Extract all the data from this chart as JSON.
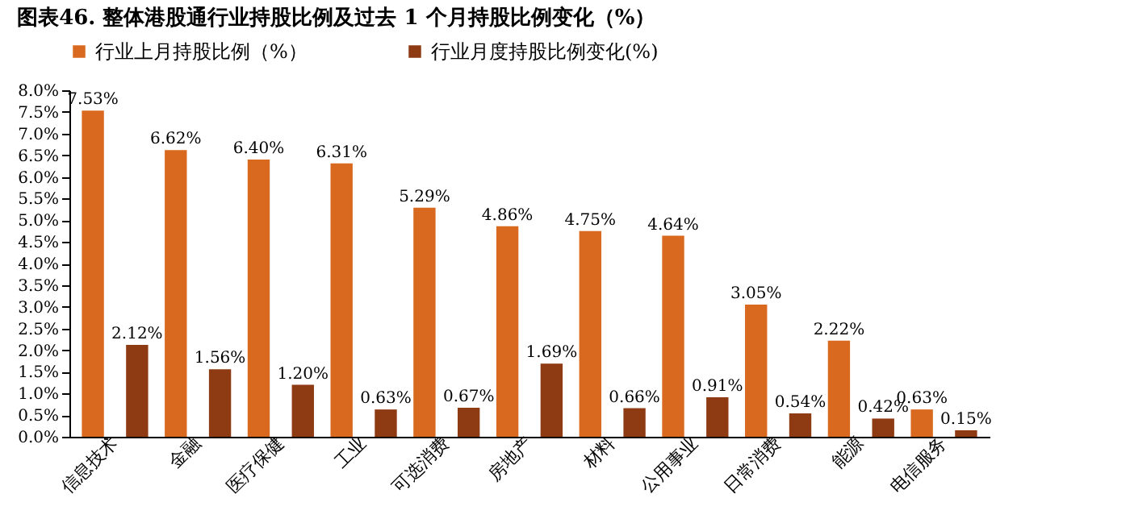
{
  "chart_data": {
    "type": "bar",
    "title": "图表46.  整体港股通行业持股比例及过去 1 个月持股比例变化（%）",
    "categories": [
      "信息技术",
      "金融",
      "医疗保健",
      "工业",
      "可选消费",
      "房地产",
      "材料",
      "公用事业",
      "日常消费",
      "能源",
      "电信服务"
    ],
    "series": [
      {
        "name": "行业上月持股比例（%）",
        "color": "#d8691f",
        "values": [
          7.53,
          6.62,
          6.4,
          6.31,
          5.29,
          4.86,
          4.75,
          4.64,
          3.05,
          2.22,
          0.63
        ],
        "value_labels": [
          "7.53%",
          "6.62%",
          "6.40%",
          "6.31%",
          "5.29%",
          "4.86%",
          "4.75%",
          "4.64%",
          "3.05%",
          "2.22%",
          "0.63%"
        ]
      },
      {
        "name": "行业月度持股比例变化(%)",
        "color": "#8e3b14",
        "values": [
          2.12,
          1.56,
          1.2,
          0.63,
          0.67,
          1.69,
          0.66,
          0.91,
          0.54,
          0.42,
          0.15
        ],
        "value_labels": [
          "2.12%",
          "1.56%",
          "1.20%",
          "0.63%",
          "0.67%",
          "1.69%",
          "0.66%",
          "0.91%",
          "0.54%",
          "0.42%",
          "0.15%"
        ]
      }
    ],
    "ylim": [
      0,
      8
    ],
    "yticks": [
      {
        "value": 0,
        "label": "0.0%"
      },
      {
        "value": 0.5,
        "label": "0.5%"
      },
      {
        "value": 1,
        "label": "1.0%"
      },
      {
        "value": 1.5,
        "label": "1.5%"
      },
      {
        "value": 2,
        "label": "2.0%"
      },
      {
        "value": 2.5,
        "label": "2.5%"
      },
      {
        "value": 3,
        "label": "3.0%"
      },
      {
        "value": 3.5,
        "label": "3.5%"
      },
      {
        "value": 4,
        "label": "4.0%"
      },
      {
        "value": 4.5,
        "label": "4.5%"
      },
      {
        "value": 5,
        "label": "5.0%"
      },
      {
        "value": 5.5,
        "label": "5.5%"
      },
      {
        "value": 6,
        "label": "6.0%"
      },
      {
        "value": 6.5,
        "label": "6.5%"
      },
      {
        "value": 7,
        "label": "7.0%"
      },
      {
        "value": 7.5,
        "label": "7.5%"
      },
      {
        "value": 8,
        "label": "8.0%"
      }
    ],
    "grid": false,
    "legend": "top"
  }
}
